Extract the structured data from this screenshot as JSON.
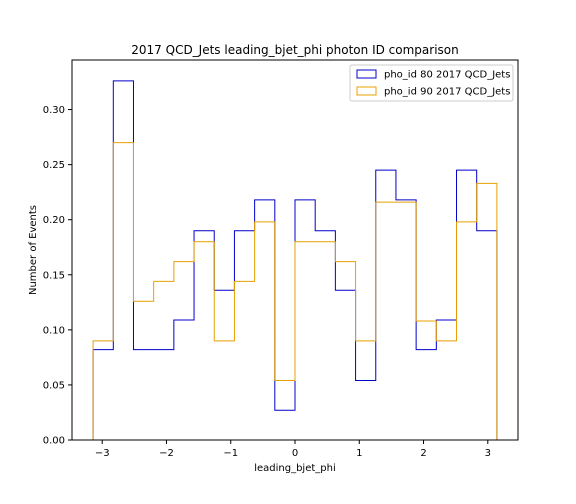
{
  "chart_data": {
    "type": "step-histogram",
    "title": "2017 QCD_Jets leading_bjet_phi photon ID comparison",
    "xlabel": "leading_bjet_phi",
    "ylabel": "Number of Events",
    "xlim": [
      -3.47,
      3.47
    ],
    "ylim": [
      0.0,
      0.345
    ],
    "xticks": [
      -3,
      -2,
      -1,
      0,
      1,
      2,
      3
    ],
    "xtick_labels": [
      "−3",
      "−2",
      "−1",
      "0",
      "1",
      "2",
      "3"
    ],
    "yticks": [
      0.0,
      0.05,
      0.1,
      0.15,
      0.2,
      0.25,
      0.3
    ],
    "ytick_labels": [
      "0.00",
      "0.05",
      "0.10",
      "0.15",
      "0.20",
      "0.25",
      "0.30"
    ],
    "bin_edges": [
      -3.1416,
      -2.8274,
      -2.5133,
      -2.1991,
      -1.885,
      -1.5708,
      -1.2566,
      -0.9425,
      -0.6283,
      -0.3142,
      0.0,
      0.3142,
      0.6283,
      0.9425,
      1.2566,
      1.5708,
      1.885,
      2.1991,
      2.5133,
      2.8274,
      3.1416
    ],
    "legend_position": "upper right",
    "series": [
      {
        "name": "pho_id 80 2017 QCD_Jets",
        "color": "#0000cc",
        "values": [
          0.082,
          0.326,
          0.082,
          0.082,
          0.109,
          0.19,
          0.136,
          0.19,
          0.218,
          0.027,
          0.218,
          0.19,
          0.136,
          0.054,
          0.245,
          0.218,
          0.082,
          0.109,
          0.245,
          0.19
        ]
      },
      {
        "name": "pho_id 90 2017 QCD_Jets",
        "color": "#e8a000",
        "values": [
          0.09,
          0.27,
          0.126,
          0.144,
          0.162,
          0.18,
          0.09,
          0.144,
          0.198,
          0.054,
          0.18,
          0.18,
          0.162,
          0.09,
          0.216,
          0.216,
          0.108,
          0.09,
          0.198,
          0.233
        ]
      }
    ]
  }
}
